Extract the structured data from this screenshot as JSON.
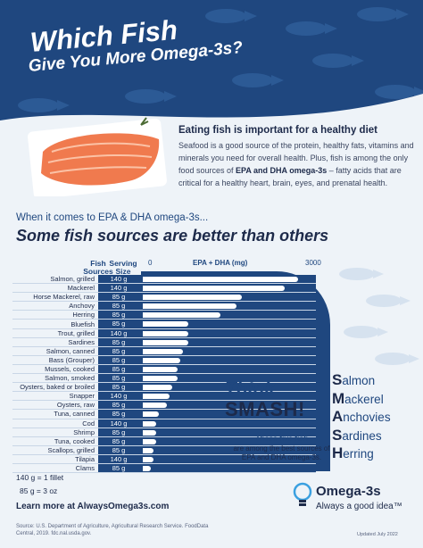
{
  "header": {
    "title_line1": "Which Fish",
    "title_line2": "Give You More Omega-3s?"
  },
  "intro": {
    "heading": "Eating fish is important for a healthy diet",
    "body_part1": "Seafood is a good source of the protein, healthy fats, vitamins and minerals you need for overall health. Plus, fish is among the only food sources of ",
    "body_bold": "EPA and DHA omega-3s",
    "body_part2": " – fatty acids that are critical for a healthy heart, brain, eyes, and prenatal health."
  },
  "section": {
    "subtitle": "When it comes to EPA & DHA omega-3s...",
    "title": "Some fish sources are better than others"
  },
  "chart_data": {
    "type": "bar",
    "column_fish": "Fish Sources",
    "column_serving": "Serving Size",
    "axis_label": "EPA + DHA (mg)",
    "axis_ticks": [
      "0",
      "3000"
    ],
    "xlim": [
      0,
      3000
    ],
    "categories": [
      "Salmon, grilled",
      "Mackerel",
      "Horse Mackerel, raw",
      "Anchovy",
      "Herring",
      "Bluefish",
      "Trout, grilled",
      "Sardines",
      "Salmon, canned",
      "Bass (Grouper)",
      "Mussels, cooked",
      "Salmon, smoked",
      "Oysters, baked or broiled",
      "Snapper",
      "Oysters, raw",
      "Tuna, canned",
      "Cod",
      "Shrimp",
      "Tuna, cooked",
      "Scallops, grilled",
      "Tilapia",
      "Clams"
    ],
    "servings": [
      "140 g",
      "140 g",
      "85 g",
      "85 g",
      "85 g",
      "85 g",
      "140 g",
      "85 g",
      "85 g",
      "85 g",
      "85 g",
      "85 g",
      "85 g",
      "140 g",
      "85 g",
      "85 g",
      "140 g",
      "85 g",
      "85 g",
      "85 g",
      "140 g",
      "85 g"
    ],
    "values": [
      2900,
      2650,
      1850,
      1750,
      1450,
      850,
      850,
      850,
      750,
      700,
      650,
      650,
      550,
      500,
      450,
      300,
      250,
      250,
      250,
      200,
      200,
      150
    ]
  },
  "footnotes": {
    "fillet": "140 g = 1 fillet",
    "oz": "85 g = 3 oz",
    "learn_more": "Learn more at AlwaysOmega3s.com",
    "source": "Source: U.S. Department of Agriculture, Agricultural Research Service. FoodData Central, 2019. fdc.nal.usda.gov."
  },
  "smash": {
    "think": "Think",
    "smash": "SMASH!",
    "five_fish": "These five fish",
    "five_sub": "are among the best sources of EPA and DHA omega-3s.",
    "items": [
      {
        "initial": "S",
        "rest": "almon"
      },
      {
        "initial": "M",
        "rest": "ackerel"
      },
      {
        "initial": "A",
        "rest": "nchovies"
      },
      {
        "initial": "S",
        "rest": "ardines"
      },
      {
        "initial": "H",
        "rest": "erring"
      }
    ]
  },
  "logo": {
    "name": "Omega-3s",
    "tagline": "Always a good idea™"
  },
  "updated": "Updated July 2022",
  "colors": {
    "navy": "#1f477f",
    "dark": "#1d2a4a",
    "bg": "#eef3f8"
  }
}
